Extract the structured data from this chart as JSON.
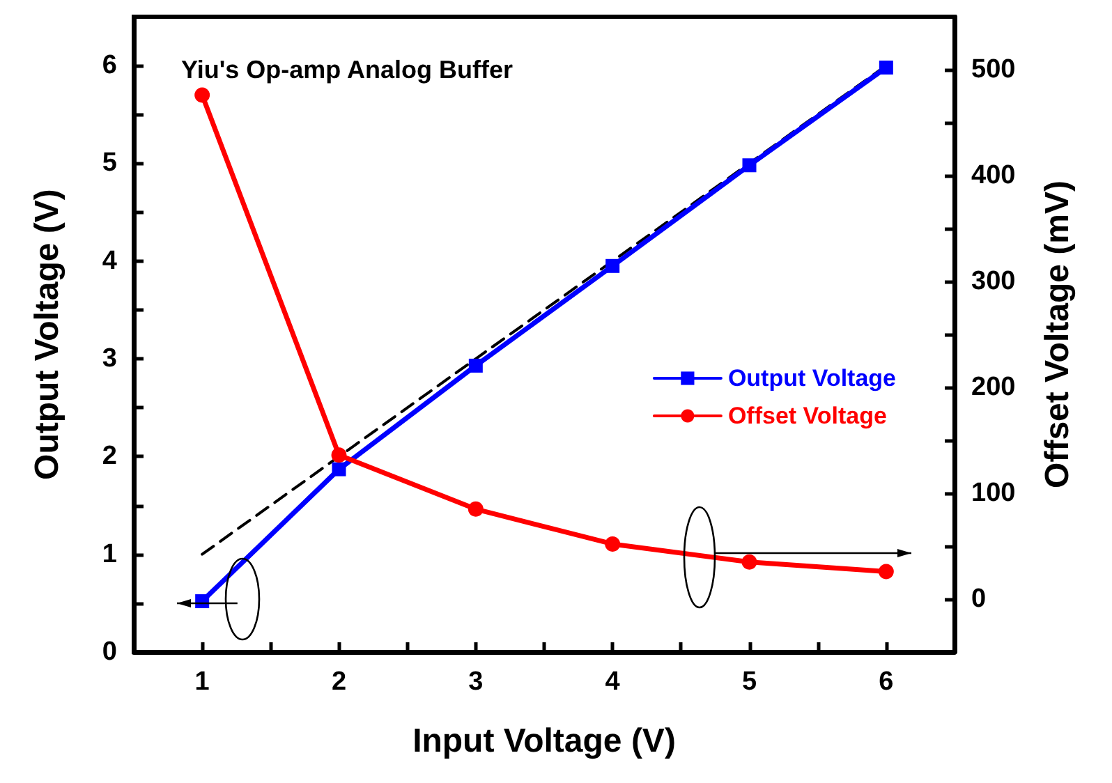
{
  "chart_data": {
    "type": "line",
    "title": "Yiu's Op-amp Analog Buffer",
    "xlabel": "Input Voltage (V)",
    "ylabel": "Output Voltage (V)",
    "y2label": "Offset Voltage (mV)",
    "x": [
      1,
      2,
      3,
      4,
      5,
      6
    ],
    "series": [
      {
        "name": "Output Voltage",
        "color": "#0000ff",
        "marker": "square",
        "line_style": "solid",
        "values": [
          0.52,
          1.87,
          2.93,
          3.95,
          4.98,
          5.98
        ]
      },
      {
        "name": "Offset Voltage",
        "color": "#ff0000",
        "marker": "circle",
        "line_style": "solid",
        "axis": "y2",
        "values": [
          476,
          136,
          85,
          52,
          35,
          26
        ]
      },
      {
        "type": "line",
        "color": "#000000",
        "marker": "none",
        "line_style": "dashed",
        "x": [
          1,
          6
        ],
        "values": [
          1,
          6
        ]
      }
    ],
    "xlim": [
      0.5,
      6.5
    ],
    "xticks": [
      1,
      {
        "value": 1.5,
        "label": null
      },
      2,
      {
        "value": 2.5,
        "label": null
      },
      3,
      {
        "value": 3.5,
        "label": null
      },
      4,
      {
        "value": 4.5,
        "label": null
      },
      5,
      {
        "value": 5.5,
        "label": null
      },
      6
    ],
    "ylim": [
      0,
      6.5
    ],
    "yticks": [
      0,
      {
        "value": 0.5,
        "label": null
      },
      1,
      {
        "value": 1.5,
        "label": null
      },
      2,
      {
        "value": 2.5,
        "label": null
      },
      3,
      {
        "value": 3.5,
        "label": null
      },
      4,
      {
        "value": 4.5,
        "label": null
      },
      5,
      {
        "value": 5.5,
        "label": null
      },
      6
    ],
    "y2lim": [
      -50,
      550
    ],
    "y2ticks": [
      0,
      {
        "value": 50,
        "label": null
      },
      100,
      {
        "value": 150,
        "label": null
      },
      200,
      {
        "value": 250,
        "label": null
      },
      300,
      {
        "value": 350,
        "label": null
      },
      400,
      {
        "value": 450,
        "label": null
      },
      500
    ],
    "legend": "right",
    "grid": false
  }
}
